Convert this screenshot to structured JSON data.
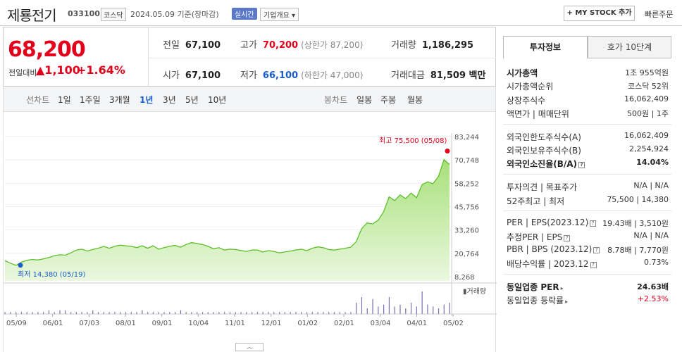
{
  "header": {
    "company": "제룡전기",
    "code": "033100",
    "market": "코스닥",
    "date": "2024.05.09 기준(장마감)",
    "realtime": "실시간",
    "overview": "기업개요 ▾",
    "mystock": "+ MY STOCK 추가",
    "quick_order": "빠른주문"
  },
  "price": {
    "current": "68,200",
    "change_label": "전일대비",
    "change": "▲1,100",
    "change_pct": "+1.64%"
  },
  "stats": {
    "prev_label": "전일",
    "prev": "67,100",
    "high_label": "고가",
    "high": "70,200",
    "upper": "(상한가 87,200)",
    "volume_label": "거래량",
    "volume": "1,186,295",
    "open_label": "시가",
    "open": "67,100",
    "low_label": "저가",
    "low": "66,100",
    "lower": "(하한가 47,000)",
    "amount_label": "거래대금",
    "amount": "81,509 백만"
  },
  "period": {
    "line_label": "선차트",
    "items": [
      "1일",
      "1주일",
      "3개월",
      "1년",
      "3년",
      "5년",
      "10년"
    ],
    "active": "1년",
    "candle_label": "봉차트",
    "candle_items": [
      "일봉",
      "주봉",
      "월봉"
    ]
  },
  "chart_data": {
    "type": "area",
    "x_ticks": [
      "05/09",
      "06/01",
      "07/03",
      "08/01",
      "09/01",
      "10/04",
      "11/01",
      "12/01",
      "01/02",
      "02/01",
      "03/04",
      "04/01",
      "05/02"
    ],
    "y_ticks": [
      "83,244",
      "70,748",
      "58,252",
      "45,756",
      "33,260",
      "20,764",
      "8,268"
    ],
    "ylim": [
      8268,
      83244
    ],
    "series": [
      {
        "values": [
          16800,
          15500,
          14380,
          16000,
          17000,
          17500,
          17200,
          17800,
          18500,
          19500,
          20000,
          19800,
          21000,
          22500,
          23000,
          22000,
          22800,
          23500,
          24500,
          23500,
          24500,
          25200,
          24800,
          24500,
          23800,
          24800,
          23500,
          24800,
          23000,
          23800,
          24500,
          25000,
          24000,
          25500,
          26500,
          26000,
          25500,
          24500,
          23200,
          23800,
          22500,
          23000,
          22800,
          22300,
          21800,
          22500,
          22500,
          21500,
          22200,
          21800,
          21000,
          21500,
          22000,
          22500,
          23000,
          22200,
          23500,
          24200,
          23800,
          22800,
          22500,
          23000,
          23500,
          24000,
          27000,
          34000,
          37000,
          36500,
          38500,
          43000,
          51000,
          49000,
          52000,
          50000,
          53000,
          50500,
          57500,
          59000,
          58000,
          62000,
          71000,
          68200
        ]
      }
    ],
    "high_label": "최고 75,500 (05/08)",
    "low_label": "최저 14,380 (05/19)",
    "volume_label": "거래량",
    "volume": [
      1,
      1,
      1,
      1,
      1,
      1,
      1,
      1,
      2,
      1,
      2,
      2,
      1,
      1,
      1,
      1,
      2,
      1,
      1,
      1,
      1,
      1,
      1,
      1,
      1,
      2,
      1,
      1,
      1,
      1,
      1,
      1,
      2,
      1,
      1,
      1,
      1,
      1,
      1,
      1,
      1,
      1,
      1,
      1,
      1,
      1,
      1,
      1,
      1,
      1,
      1,
      1,
      1,
      1,
      1,
      1,
      1,
      1,
      1,
      1,
      1,
      1,
      1,
      1,
      6,
      9,
      3,
      8,
      4,
      5,
      9,
      4,
      5,
      3,
      6,
      4,
      12,
      5,
      4,
      3,
      5,
      6
    ]
  },
  "tabs": {
    "info": "투자정보",
    "hoga": "호가 10단계"
  },
  "info": {
    "cap_label": "시가총액",
    "cap": "1조 955억원",
    "cap_rank_label": "시가총액순위",
    "cap_rank": "코스닥 52위",
    "shares_label": "상장주식수",
    "shares": "16,062,409",
    "par_label": "액면가 | 매매단위",
    "par": "500원 | 1주",
    "foreign_limit_label": "외국인한도주식수(A)",
    "foreign_limit": "16,062,409",
    "foreign_hold_label": "외국인보유주식수(B)",
    "foreign_hold": "2,254,924",
    "foreign_ratio_label": "외국인소진율(B/A)",
    "foreign_ratio": "14.04%",
    "opinion_label": "투자의견 | 목표주가",
    "opinion": "N/A | N/A",
    "w52_label": "52주최고 | 최저",
    "w52": "75,500 | 14,380",
    "per_label": "PER | EPS(2023.12)",
    "per": "19.43배 | 3,510원",
    "est_per_label": "추정PER | EPS",
    "est_per": "N/A | N/A",
    "pbr_label": "PBR | BPS (2023.12)",
    "pbr": "8.78배 | 7,770원",
    "div_label": "배당수익률 | 2023.12",
    "div": "0.73%",
    "sector_per_label": "동일업종 PER",
    "sector_per": "24.63배",
    "sector_rate_label": "동일업종 등락률",
    "sector_rate": "+2.53%"
  }
}
